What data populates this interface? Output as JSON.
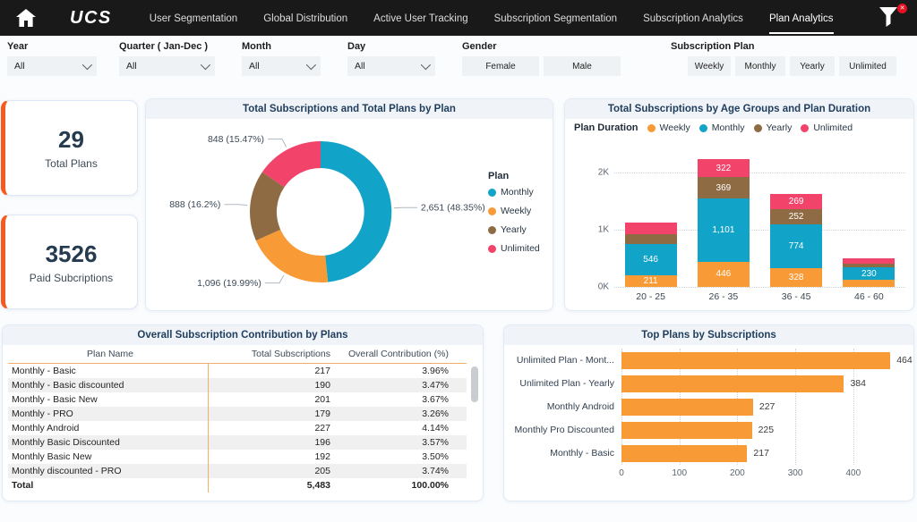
{
  "nav": {
    "logo": "UCS",
    "tabs": [
      {
        "label": "User Segmentation",
        "active": false
      },
      {
        "label": "Global Distribution",
        "active": false
      },
      {
        "label": "Active User Tracking",
        "active": false
      },
      {
        "label": "Subscription Segmentation",
        "active": false
      },
      {
        "label": "Subscription Analytics",
        "active": false
      },
      {
        "label": "Plan Analytics",
        "active": true
      }
    ],
    "filter_badge": "✕"
  },
  "filters": {
    "dropdowns": [
      {
        "label": "Year",
        "value": "All"
      },
      {
        "label": "Quarter ( Jan-Dec )",
        "value": "All"
      },
      {
        "label": "Month",
        "value": "All"
      },
      {
        "label": "Day",
        "value": "All"
      }
    ],
    "gender": {
      "label": "Gender",
      "options": [
        "Female",
        "Male"
      ]
    },
    "plan": {
      "label": "Subscription Plan",
      "options": [
        "Weekly",
        "Monthly",
        "Yearly",
        "Unlimited"
      ]
    }
  },
  "kpis": [
    {
      "value": "29",
      "label": "Total Plans"
    },
    {
      "value": "3526",
      "label": "Paid Subcriptions"
    }
  ],
  "colors": {
    "nav_bg": "#191919",
    "kpi_accent": "#F45B21",
    "monthly_blue": "#12A3C9",
    "weekly_orange": "#F89A35",
    "yearly_brown": "#8F6B44",
    "unlimited_pink": "#F2436B",
    "title_navy": "#1F3D5C",
    "table_rule_orange": "#F2AE6B"
  },
  "chart_data": [
    {
      "id": "plan-donut",
      "type": "pie",
      "donut": true,
      "title": "Total Subscriptions and Total Plans by Plan",
      "legend_title": "Plan",
      "legend_position": "right",
      "labels": [
        "Monthly",
        "Weekly",
        "Yearly",
        "Unlimited"
      ],
      "values": [
        2651,
        1096,
        888,
        848
      ],
      "display_labels": [
        "2,651 (48.35%)",
        "1,096 (19.99%)",
        "888 (16.2%)",
        "848 (15.47%)"
      ],
      "colors": [
        "#12A3C9",
        "#F89A35",
        "#8F6B44",
        "#F2436B"
      ]
    },
    {
      "id": "age-stacked-bar",
      "type": "bar",
      "stacked": true,
      "title": "Total Subscriptions by Age Groups and Plan Duration",
      "legend_title": "Plan Duration",
      "legend_position": "top",
      "categories": [
        "20 - 25",
        "26 - 35",
        "36 - 45",
        "46 - 60"
      ],
      "series": [
        {
          "name": "Weekly",
          "color": "#F89A35",
          "values": [
            211,
            446,
            328,
            118
          ],
          "labels": [
            "211",
            "446",
            "328",
            null
          ]
        },
        {
          "name": "Monthly",
          "color": "#12A3C9",
          "values": [
            546,
            1101,
            774,
            230
          ],
          "labels": [
            "546",
            "1,101",
            "774",
            "230"
          ]
        },
        {
          "name": "Yearly",
          "color": "#8F6B44",
          "values": [
            165,
            369,
            252,
            60
          ],
          "labels": [
            null,
            "369",
            "252",
            null
          ]
        },
        {
          "name": "Unlimited",
          "color": "#F2436B",
          "values": [
            205,
            322,
            269,
            90
          ],
          "labels": [
            null,
            "322",
            "269",
            null
          ]
        }
      ],
      "y_ticks": [
        "0K",
        "1K",
        "2K"
      ],
      "ylim": [
        0,
        2343
      ],
      "grid": "dotted-horizontal"
    },
    {
      "id": "contribution-table",
      "type": "table",
      "title": "Overall Subscription Contribution by Plans",
      "columns": [
        "Plan Name",
        "Total Subscriptions",
        "Overall Contribution (%)"
      ],
      "rows": [
        [
          "Monthly - Basic",
          "217",
          "3.96%"
        ],
        [
          "Monthly - Basic discounted",
          "190",
          "3.47%"
        ],
        [
          "Monthly - Basic New",
          "201",
          "3.67%"
        ],
        [
          "Monthly - PRO",
          "179",
          "3.26%"
        ],
        [
          "Monthly Android",
          "227",
          "4.14%"
        ],
        [
          "Monthly Basic Discounted",
          "196",
          "3.57%"
        ],
        [
          "Monthly Basic New",
          "192",
          "3.50%"
        ],
        [
          "Monthly discounted - PRO",
          "205",
          "3.74%"
        ]
      ],
      "total_row": [
        "Total",
        "5,483",
        "100.00%"
      ]
    },
    {
      "id": "top-plans-bar",
      "type": "bar",
      "orientation": "horizontal",
      "title": "Top Plans by Subscriptions",
      "categories": [
        "Unlimited Plan - Mont...",
        "Unlimited Plan - Yearly",
        "Monthly Android",
        "Monthly Pro Discounted",
        "Monthly - Basic"
      ],
      "values": [
        464,
        384,
        227,
        225,
        217
      ],
      "color": "#F89A35",
      "x_ticks": [
        "0",
        "100",
        "200",
        "300",
        "400"
      ],
      "xlim": [
        0,
        450
      ],
      "grid": "dotted-vertical"
    }
  ]
}
